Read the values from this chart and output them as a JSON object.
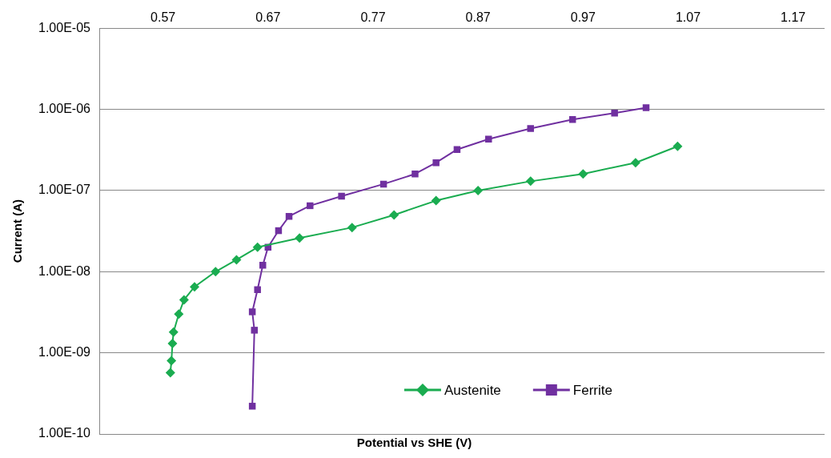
{
  "chart_data": {
    "type": "line",
    "xlabel": "Potential vs SHE (V)",
    "ylabel": "Current (A)",
    "log": "y",
    "grid": "y",
    "legend": "bottom right",
    "xlim": [
      0.51,
      1.2
    ],
    "xticks": [
      0.57,
      0.67,
      0.77,
      0.87,
      0.97,
      1.07,
      1.17
    ],
    "ylim": [
      1e-10,
      1e-05
    ],
    "yticks": [
      {
        "value": 1e-10,
        "label": "1.00E-10"
      },
      {
        "value": 1e-09,
        "label": "1.00E-09"
      },
      {
        "value": 1e-08,
        "label": "1.00E-08"
      },
      {
        "value": 1e-07,
        "label": "1.00E-07"
      },
      {
        "value": 1e-06,
        "label": "1.00E-06"
      },
      {
        "value": 1e-05,
        "label": "1.00E-05"
      }
    ],
    "series": [
      {
        "name": "Austenite",
        "color": "#1aac50",
        "marker": "diamond",
        "x": [
          0.577,
          0.578,
          0.579,
          0.58,
          0.585,
          0.59,
          0.6,
          0.62,
          0.64,
          0.66,
          0.7,
          0.75,
          0.79,
          0.83,
          0.87,
          0.92,
          0.97,
          1.02,
          1.06
        ],
        "values": [
          5.7e-10,
          8e-10,
          1.3e-09,
          1.8e-09,
          3e-09,
          4.5e-09,
          6.5e-09,
          1e-08,
          1.4e-08,
          2e-08,
          2.6e-08,
          3.5e-08,
          5e-08,
          7.5e-08,
          1e-07,
          1.3e-07,
          1.6e-07,
          2.2e-07,
          3.5e-07
        ]
      },
      {
        "name": "Ferrite",
        "color": "#7030a0",
        "marker": "square",
        "x": [
          0.655,
          0.657,
          0.655,
          0.66,
          0.665,
          0.67,
          0.68,
          0.69,
          0.71,
          0.74,
          0.78,
          0.81,
          0.83,
          0.85,
          0.88,
          0.92,
          0.96,
          1.0,
          1.03
        ],
        "values": [
          2.2e-10,
          1.9e-09,
          3.2e-09,
          6e-09,
          1.2e-08,
          2e-08,
          3.2e-08,
          4.8e-08,
          6.5e-08,
          8.5e-08,
          1.2e-07,
          1.6e-07,
          2.2e-07,
          3.2e-07,
          4.3e-07,
          5.8e-07,
          7.5e-07,
          9e-07,
          1.05e-06
        ]
      }
    ]
  }
}
